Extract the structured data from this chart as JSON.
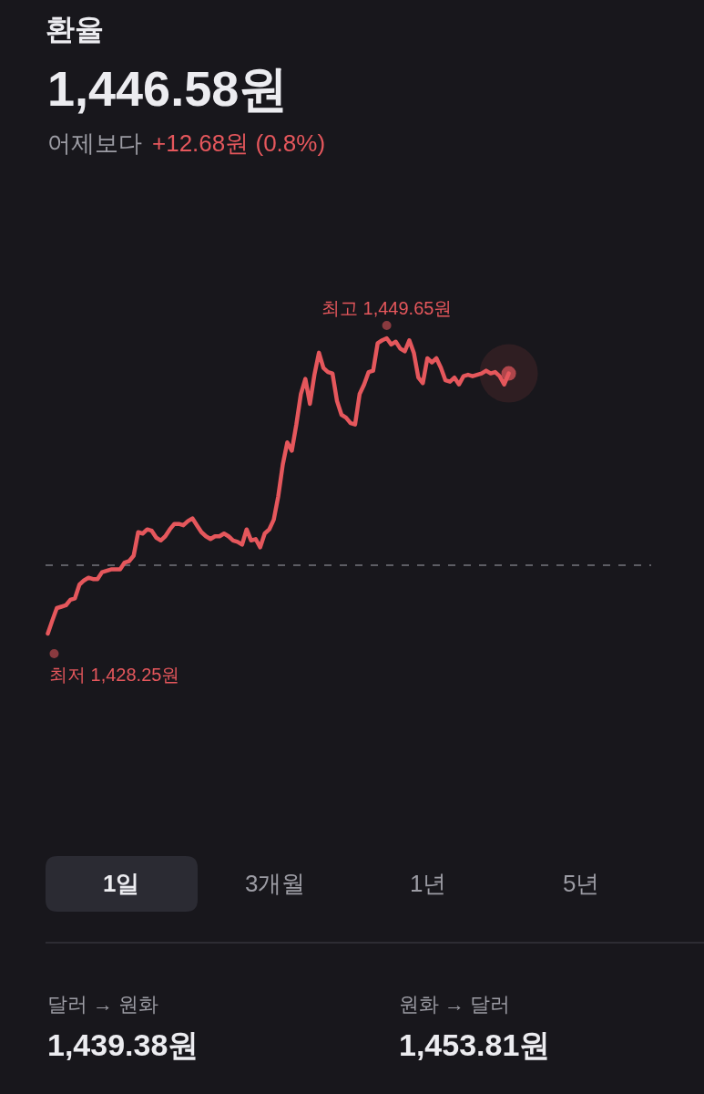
{
  "chart_data": {
    "type": "line",
    "title": "환율",
    "subtitle": "1,446.58원",
    "categories": [
      null,
      null,
      null,
      null,
      null,
      null,
      null,
      null,
      null,
      null,
      null,
      null,
      null,
      null,
      null,
      null,
      null,
      null,
      null,
      null,
      null,
      null,
      null,
      null,
      null,
      null,
      null,
      null,
      null,
      null,
      null,
      null,
      null,
      null,
      null,
      null,
      null,
      null,
      null,
      null,
      null,
      null,
      null,
      null,
      null,
      null,
      null,
      null,
      null,
      null,
      null,
      null,
      null,
      null,
      null,
      null,
      null,
      null,
      null,
      null,
      null,
      null,
      null,
      null,
      null,
      null,
      null,
      null,
      null,
      null,
      null,
      null,
      null,
      null,
      null,
      null,
      null,
      null,
      null,
      null,
      null,
      null,
      null,
      null,
      null,
      null,
      null,
      null,
      null,
      null,
      null,
      null,
      null,
      null,
      null,
      null,
      null,
      null,
      null,
      null,
      null,
      null,
      null
    ],
    "series": [
      {
        "color": "#e5575c",
        "values": [
          1428.25,
          1429.2,
          1430.1,
          1430.2,
          1430.3,
          1430.7,
          1430.8,
          1431.8,
          1432.1,
          1432.3,
          1432.2,
          1432.2,
          1432.7,
          1432.8,
          1432.9,
          1432.9,
          1432.9,
          1433.4,
          1433.5,
          1433.9,
          1435.6,
          1435.5,
          1435.8,
          1435.7,
          1435.2,
          1435.0,
          1435.3,
          1435.8,
          1436.2,
          1436.2,
          1436.1,
          1436.4,
          1436.6,
          1436.1,
          1435.6,
          1435.3,
          1435.1,
          1435.3,
          1435.3,
          1435.5,
          1435.3,
          1435.0,
          1434.9,
          1434.7,
          1435.8,
          1435.0,
          1435.1,
          1434.5,
          1435.5,
          1435.8,
          1436.5,
          1438.2,
          1440.5,
          1442.1,
          1441.5,
          1443.4,
          1445.6,
          1446.7,
          1444.9,
          1447.0,
          1448.6,
          1447.5,
          1447.2,
          1447.1,
          1445.1,
          1444.1,
          1443.9,
          1443.5,
          1443.4,
          1445.6,
          1446.3,
          1447.2,
          1447.3,
          1449.3,
          1449.5,
          1449.65,
          1449.2,
          1449.4,
          1448.9,
          1448.7,
          1449.5,
          1448.6,
          1446.8,
          1446.4,
          1448.2,
          1447.9,
          1448.2,
          1447.5,
          1446.6,
          1446.5,
          1446.8,
          1446.3,
          1446.9,
          1447.0,
          1446.9,
          1447.0,
          1447.1,
          1447.3,
          1447.1,
          1447.2,
          1446.9,
          1446.3,
          1447.1
        ],
        "value_labels": [
          "최저 1,428.25원",
          null,
          null,
          null,
          null,
          null,
          null,
          null,
          null,
          null,
          null,
          null,
          null,
          null,
          null,
          null,
          null,
          null,
          null,
          null,
          null,
          null,
          null,
          null,
          null,
          null,
          null,
          null,
          null,
          null,
          null,
          null,
          null,
          null,
          null,
          null,
          null,
          null,
          null,
          null,
          null,
          null,
          null,
          null,
          null,
          null,
          null,
          null,
          null,
          null,
          null,
          null,
          null,
          null,
          null,
          null,
          null,
          null,
          null,
          null,
          null,
          null,
          null,
          null,
          null,
          null,
          null,
          null,
          null,
          null,
          null,
          null,
          null,
          null,
          null,
          "최고 1,449.65원",
          null,
          null,
          null,
          null,
          null,
          null,
          null,
          null,
          null,
          null,
          null,
          null,
          null,
          null,
          null,
          null,
          null,
          null,
          null,
          null,
          null,
          null,
          null,
          null,
          null,
          null,
          null
        ]
      }
    ],
    "tick_labels": false,
    "line_style": "solid",
    "ref_lines": [
      {
        "axis": "y",
        "value": 1433.2,
        "line_style": "dashed",
        "color": "#5d5d64"
      }
    ],
    "annotations": [
      "어제보다",
      "+12.68원 (0.8%)",
      "1일",
      "3개월",
      "1년",
      "5년",
      "달러 → 원화",
      "1,439.38원",
      "원화 → 달러",
      "1,453.81원"
    ]
  }
}
